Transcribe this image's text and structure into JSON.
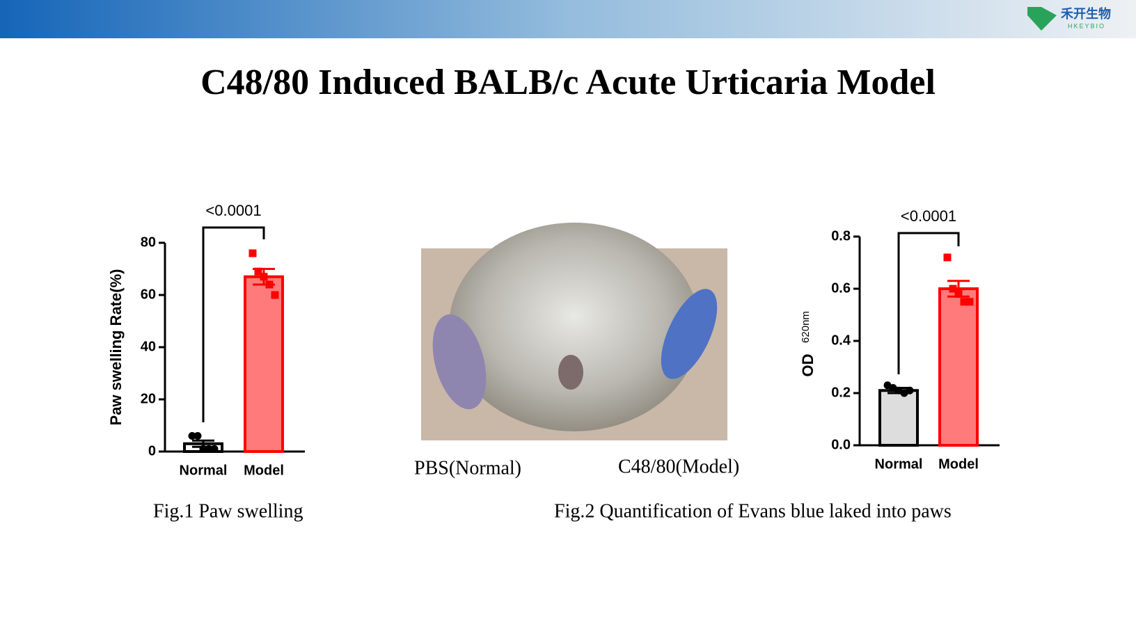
{
  "header": {
    "logo_text": "禾开生物",
    "logo_subtext": "HKEYBIO"
  },
  "title": "C48/80 Induced BALB/c Acute Urticaria Model",
  "chart_data": [
    {
      "type": "bar",
      "ylabel": "Paw swelling Rate(%)",
      "categories": [
        "Normal",
        "Model"
      ],
      "values": [
        3,
        67
      ],
      "errors": [
        1.2,
        3
      ],
      "colors": [
        "#ffffff",
        "#ff7b7b"
      ],
      "edge_colors": [
        "#000000",
        "#ff0000"
      ],
      "points": [
        [
          6,
          6,
          1,
          1,
          1
        ],
        [
          76,
          69,
          67,
          64,
          60
        ]
      ],
      "point_colors": [
        "#000000",
        "#ff0000"
      ],
      "ylim": [
        0,
        80
      ],
      "yticks": [
        0,
        20,
        40,
        60,
        80
      ],
      "significance": "<0.0001"
    },
    {
      "type": "bar",
      "ylabel": "OD",
      "ylabel_sub": "620nm",
      "categories": [
        "Normal",
        "Model"
      ],
      "values": [
        0.21,
        0.6
      ],
      "errors": [
        0.01,
        0.03
      ],
      "colors": [
        "#dddddd",
        "#ff7b7b"
      ],
      "edge_colors": [
        "#000000",
        "#ff0000"
      ],
      "points": [
        [
          0.23,
          0.22,
          0.21,
          0.2,
          0.21
        ],
        [
          0.72,
          0.6,
          0.58,
          0.55,
          0.55
        ]
      ],
      "point_colors": [
        "#000000",
        "#ff0000"
      ],
      "ylim": [
        0,
        0.8
      ],
      "yticks": [
        {
          "value": 0,
          "label": "0.0"
        },
        0.2,
        0.4,
        0.6,
        0.8
      ],
      "significance": "<0.0001"
    }
  ],
  "photo": {
    "labels": [
      "PBS(Normal)",
      "C48/80(Model)"
    ]
  },
  "captions": [
    "Fig.1 Paw swelling",
    "Fig.2 Quantification of Evans blue laked into paws"
  ]
}
